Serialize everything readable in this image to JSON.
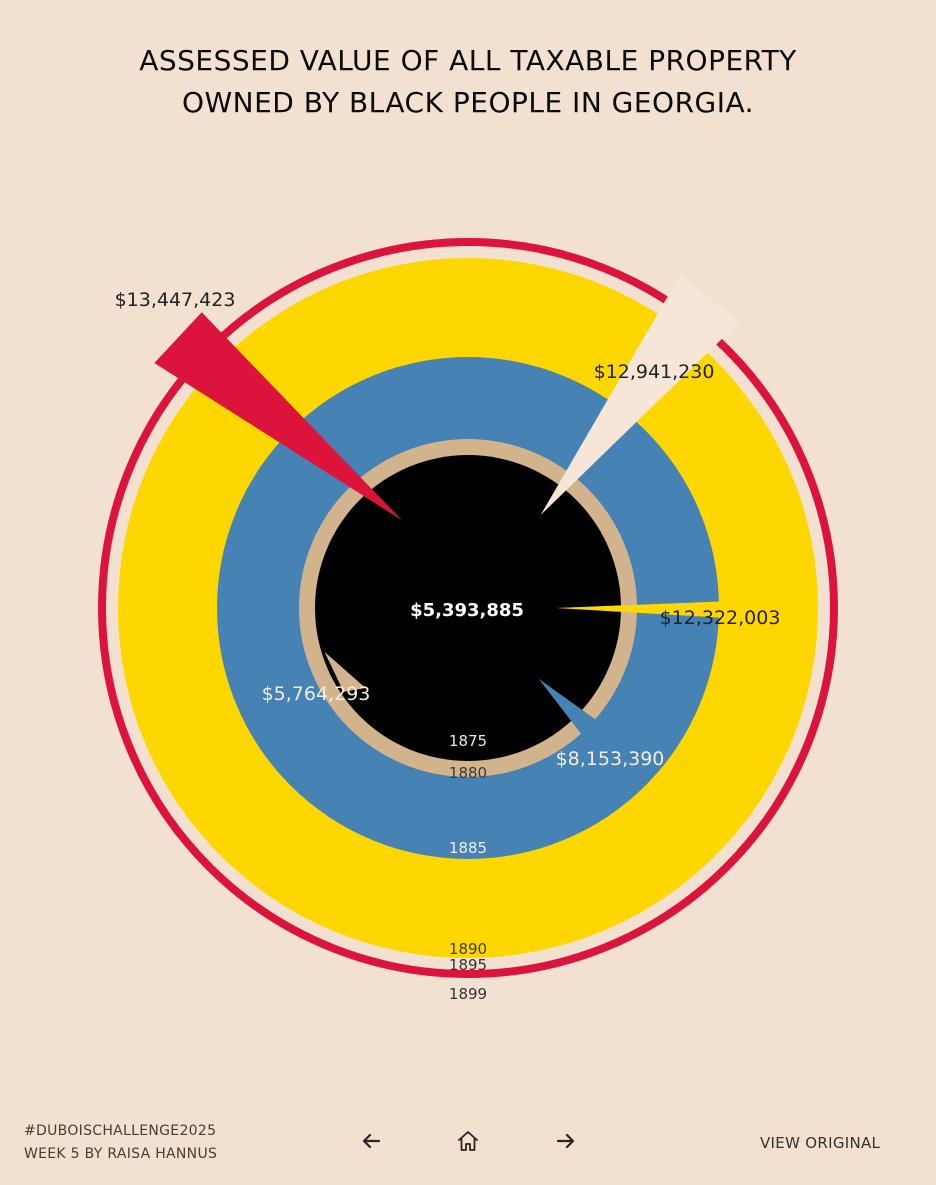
{
  "title_lines": [
    "ASSESSED VALUE OF ALL TAXABLE PROPERTY",
    "OWNED BY BLACK PEOPLE IN GEORGIA."
  ],
  "colors": {
    "background": "#f2e1d0",
    "crimson": "#dc143c",
    "gold": "#ffd700",
    "steelblue": "#4682b4",
    "tan": "#d2b48c",
    "black": "#000000",
    "cream": "#f5e6d8"
  },
  "chart_data": {
    "type": "spiral",
    "series": [
      {
        "year": "1875",
        "value": 5393885,
        "label": "$5,393,885"
      },
      {
        "year": "1880",
        "value": 5764293,
        "label": "$5,764,293"
      },
      {
        "year": "1885",
        "value": 8153390,
        "label": "$8,153,390"
      },
      {
        "year": "1890",
        "value": 12322003,
        "label": "$12,322,003"
      },
      {
        "year": "1895",
        "value": 12941230,
        "label": "$12,941,230"
      },
      {
        "year": "1899",
        "value": 13447423,
        "label": "$13,447,423"
      }
    ]
  },
  "footer": {
    "hashtag": "#DUBOISCHALLENGE2025",
    "credit": "WEEK 5 BY RAISA HANNUS",
    "view_original": "VIEW ORIGINAL"
  },
  "nav": {
    "prev_icon": "arrow-left-icon",
    "home_icon": "home-icon",
    "next_icon": "arrow-right-icon"
  }
}
